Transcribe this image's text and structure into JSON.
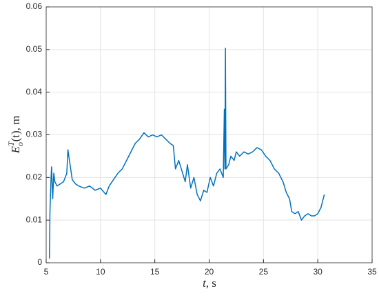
{
  "chart_data": {
    "type": "line",
    "xlabel": {
      "var": "t",
      "rest": ", s"
    },
    "ylabel": {
      "base": "E",
      "sub": "o",
      "sup": "T",
      "rest": "(t), m"
    },
    "x": [
      5.3,
      5.35,
      5.45,
      5.5,
      5.6,
      5.7,
      5.8,
      6.0,
      6.3,
      6.6,
      6.9,
      7.0,
      7.2,
      7.4,
      7.7,
      8.0,
      8.5,
      9.0,
      9.5,
      10.0,
      10.5,
      10.8,
      11.2,
      11.6,
      12.0,
      12.4,
      12.8,
      13.2,
      13.6,
      14.0,
      14.4,
      14.8,
      15.2,
      15.6,
      16.0,
      16.4,
      16.7,
      16.9,
      17.2,
      17.5,
      17.8,
      18.0,
      18.3,
      18.6,
      18.9,
      19.2,
      19.5,
      19.8,
      20.1,
      20.4,
      20.7,
      21.0,
      21.3,
      21.4,
      21.45,
      21.5,
      21.55,
      21.8,
      22.0,
      22.3,
      22.5,
      22.8,
      23.2,
      23.6,
      24.0,
      24.4,
      24.8,
      25.2,
      25.6,
      26.0,
      26.4,
      26.8,
      27.1,
      27.4,
      27.6,
      27.9,
      28.2,
      28.5,
      28.8,
      29.1,
      29.4,
      29.7,
      30.0,
      30.3,
      30.6
    ],
    "series": [
      {
        "color": "#0072bd",
        "values": [
          0.001,
          0.012,
          0.02,
          0.0225,
          0.015,
          0.021,
          0.019,
          0.018,
          0.0185,
          0.019,
          0.021,
          0.0265,
          0.023,
          0.0195,
          0.0185,
          0.018,
          0.0175,
          0.018,
          0.017,
          0.0175,
          0.016,
          0.018,
          0.0195,
          0.021,
          0.022,
          0.024,
          0.026,
          0.028,
          0.029,
          0.0305,
          0.0295,
          0.03,
          0.0295,
          0.03,
          0.029,
          0.028,
          0.0275,
          0.022,
          0.024,
          0.0215,
          0.019,
          0.023,
          0.0175,
          0.02,
          0.016,
          0.0145,
          0.017,
          0.0165,
          0.02,
          0.018,
          0.021,
          0.022,
          0.02,
          0.036,
          0.022,
          0.0503,
          0.022,
          0.023,
          0.025,
          0.024,
          0.026,
          0.025,
          0.026,
          0.0255,
          0.026,
          0.027,
          0.0265,
          0.025,
          0.024,
          0.022,
          0.021,
          0.019,
          0.0165,
          0.015,
          0.012,
          0.0115,
          0.012,
          0.01,
          0.011,
          0.0115,
          0.011,
          0.011,
          0.0115,
          0.013,
          0.016
        ]
      }
    ],
    "xlim": [
      5,
      35
    ],
    "xticks": [
      5,
      10,
      15,
      20,
      25,
      30,
      35
    ],
    "ylim": [
      0,
      0.06
    ],
    "yticks": [
      0,
      0.01,
      0.02,
      0.03,
      0.04,
      0.05,
      0.06
    ],
    "grid": true
  }
}
